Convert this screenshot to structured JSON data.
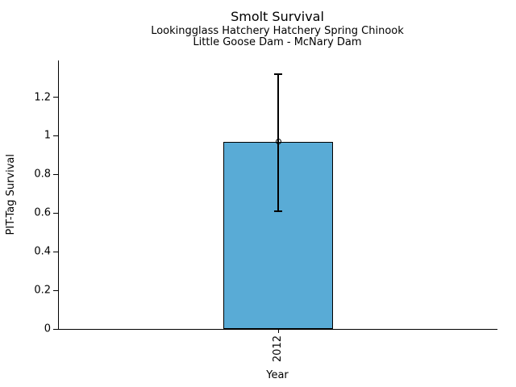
{
  "chart_data": {
    "type": "bar",
    "title": "Smolt Survival",
    "subtitle_line1": "Lookingglass Hatchery Hatchery Spring Chinook",
    "subtitle_line2": "Little Goose Dam - McNary Dam",
    "xlabel": "Year",
    "ylabel": "PIT-Tag Survival",
    "categories": [
      "2012"
    ],
    "values": [
      0.97
    ],
    "error_low": [
      0.61
    ],
    "error_high": [
      1.32
    ],
    "ylim": [
      0,
      1.39
    ],
    "yticks": [
      0,
      0.2,
      0.4,
      0.6,
      0.8,
      1,
      1.2
    ],
    "ytick_labels": [
      "0",
      "0.2",
      "0.4",
      "0.6",
      "0.8",
      "1",
      "1.2"
    ],
    "marker": "open-circle",
    "grid": false,
    "legend_position": "none",
    "colors": {
      "bar_fill": "#59abd6",
      "bar_edge": "#000000",
      "error_line": "#000000",
      "text": "#000000"
    }
  }
}
